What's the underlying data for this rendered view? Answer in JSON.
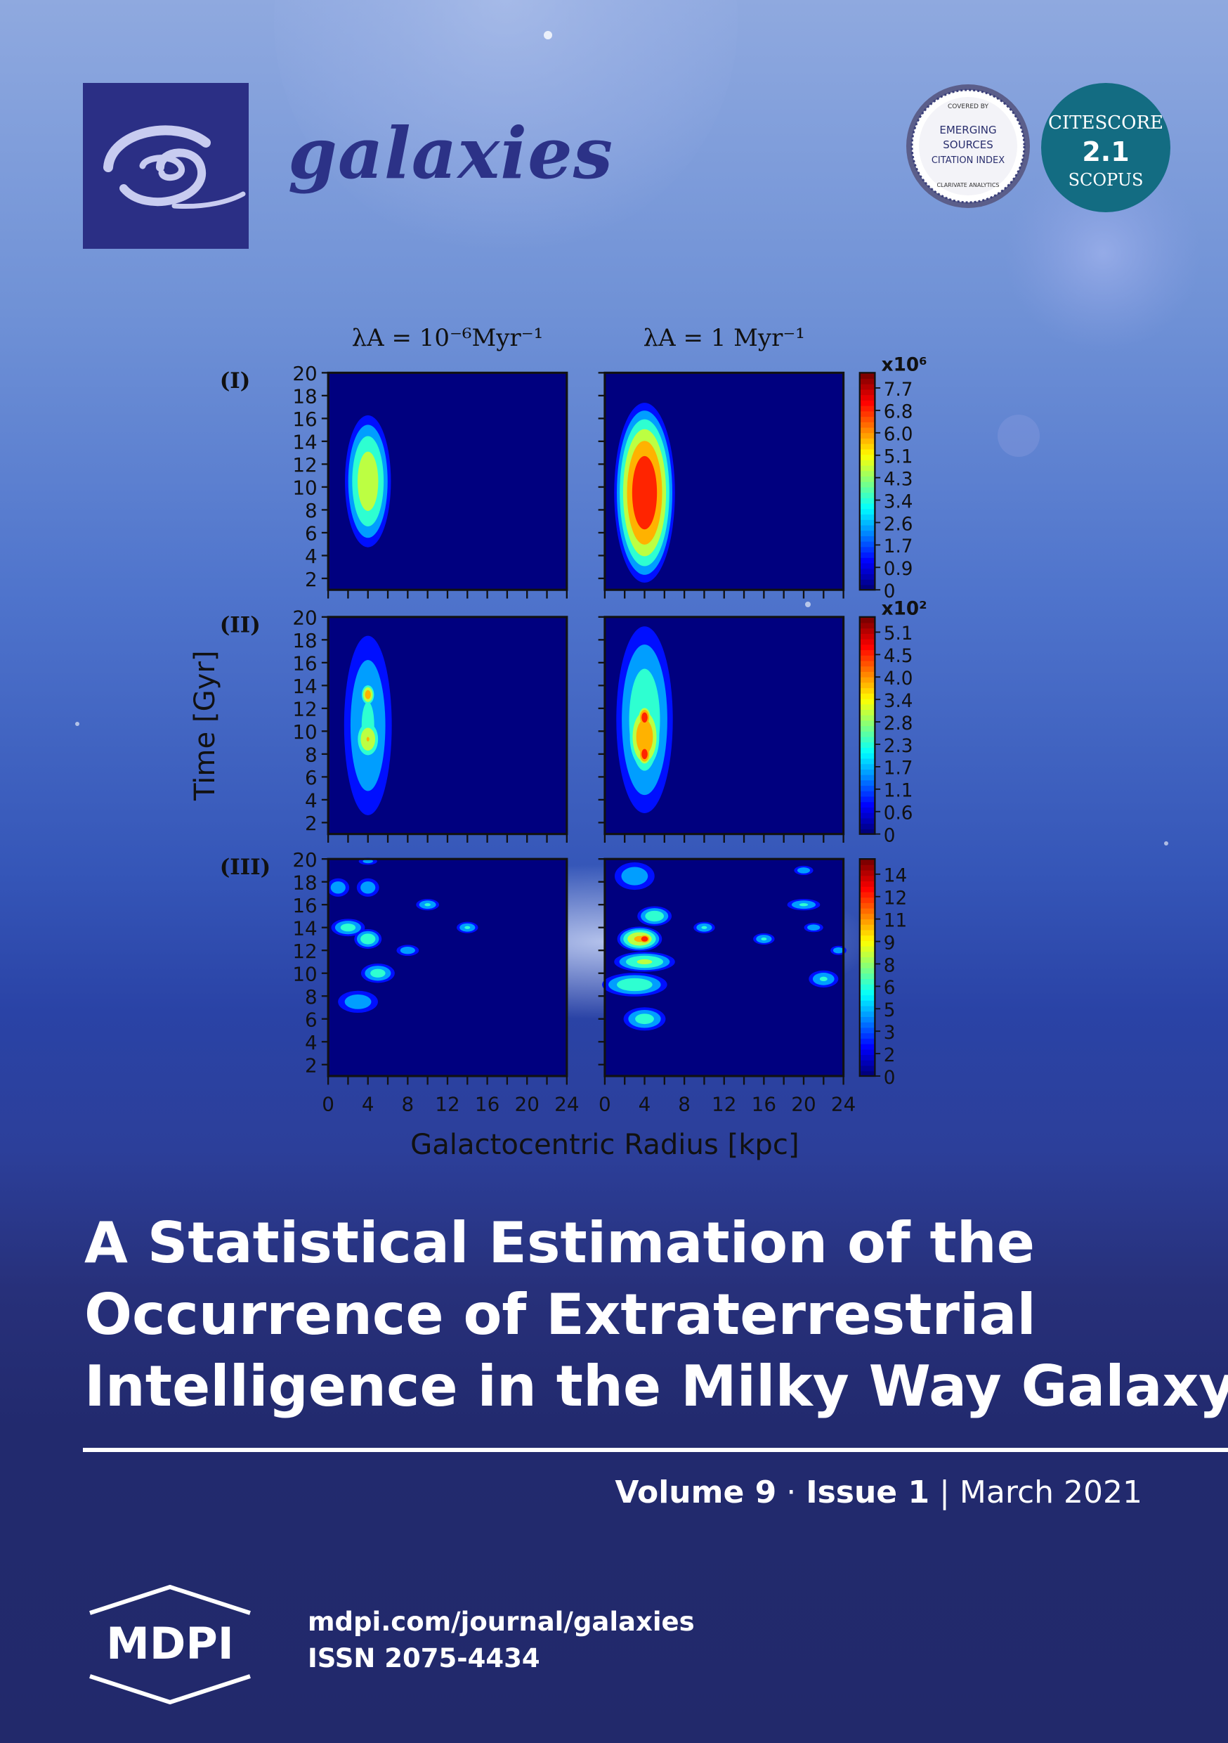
{
  "journal": {
    "name": "galaxies",
    "esci_badge": {
      "top": "COVERED BY",
      "line1": "EMERGING",
      "line2": "SOURCES",
      "line3": "CITATION INDEX",
      "bottom": "CLARIVATE ANALYTICS"
    },
    "citescore": {
      "label": "CITESCORE",
      "value": "2.1",
      "source": "SCOPUS"
    }
  },
  "article": {
    "title_lines": [
      "A Statistical Estimation of the",
      "Occurrence of Extraterrestrial",
      "Intelligence in the Milky Way Galaxy"
    ]
  },
  "issue": {
    "volume": "Volume 9",
    "issue": "Issue 1",
    "date": "March 2021"
  },
  "footer": {
    "publisher_logo": "MDPI",
    "url": "mdpi.com/journal/galaxies",
    "issn": "ISSN 2075-4434"
  },
  "chart_data": {
    "type": "heatmap",
    "column_titles": [
      "λA = 10⁻⁶Myr⁻¹",
      "λA = 1 Myr⁻¹"
    ],
    "row_labels": [
      "(I)",
      "(II)",
      "(III)"
    ],
    "xlabel": "Galactocentric Radius [kpc]",
    "ylabel": "Time [Gyr]",
    "x_ticks": [
      0,
      4,
      8,
      12,
      16,
      20,
      24
    ],
    "y_ticks": [
      2,
      4,
      6,
      8,
      10,
      12,
      14,
      16,
      18,
      20
    ],
    "xlim": [
      0,
      24
    ],
    "ylim": [
      1,
      20
    ],
    "colorbars": [
      {
        "multiplier": "x10⁶",
        "ticks": [
          "7.7",
          "6.8",
          "6.0",
          "5.1",
          "4.3",
          "3.4",
          "2.6",
          "1.7",
          "0.9",
          "0"
        ]
      },
      {
        "multiplier": "x10²",
        "ticks": [
          "5.1",
          "4.5",
          "4.0",
          "3.4",
          "2.8",
          "2.3",
          "1.7",
          "1.1",
          "0.6",
          "0"
        ]
      },
      {
        "multiplier": "",
        "ticks": [
          "14",
          "12",
          "11",
          "9",
          "8",
          "6",
          "5",
          "3",
          "2",
          "0"
        ]
      }
    ],
    "colormap": [
      "#00007f",
      "#0000ff",
      "#007fff",
      "#00ffff",
      "#7fff7f",
      "#ffff00",
      "#ff7f00",
      "#ff0000",
      "#7f0000"
    ],
    "panels": [
      {
        "row": 0,
        "col": 0,
        "blobs": [
          {
            "x": 4,
            "y": 10.5,
            "rx": 2.6,
            "ry": 6.5,
            "peak": 0.68
          }
        ]
      },
      {
        "row": 0,
        "col": 1,
        "blobs": [
          {
            "x": 4,
            "y": 9.5,
            "rx": 3.3,
            "ry": 8.5,
            "peak": 1.0
          }
        ]
      },
      {
        "row": 1,
        "col": 0,
        "blobs": [
          {
            "x": 4,
            "y": 10.5,
            "rx": 2.9,
            "ry": 9.5,
            "peak": 0.45
          },
          {
            "x": 4,
            "y": 9.3,
            "rx": 1.6,
            "ry": 2.2,
            "peak": 0.72
          },
          {
            "x": 4,
            "y": 13.2,
            "rx": 0.9,
            "ry": 1.2,
            "peak": 0.8
          }
        ]
      },
      {
        "row": 1,
        "col": 1,
        "blobs": [
          {
            "x": 4,
            "y": 11,
            "rx": 3.3,
            "ry": 9.5,
            "peak": 0.55
          },
          {
            "x": 4,
            "y": 9.5,
            "rx": 2.1,
            "ry": 3.8,
            "peak": 0.85
          },
          {
            "x": 4,
            "y": 11.2,
            "rx": 0.9,
            "ry": 1.3,
            "peak": 0.97
          },
          {
            "x": 4,
            "y": 8,
            "rx": 0.9,
            "ry": 1.3,
            "peak": 0.97
          }
        ]
      },
      {
        "row": 2,
        "col": 0,
        "blobs": [
          {
            "x": 1,
            "y": 17.5,
            "rx": 1.4,
            "ry": 1.0,
            "peak": 0.4
          },
          {
            "x": 4,
            "y": 17.5,
            "rx": 1.4,
            "ry": 1.0,
            "peak": 0.4
          },
          {
            "x": 2,
            "y": 14,
            "rx": 2.0,
            "ry": 0.9,
            "peak": 0.5
          },
          {
            "x": 4,
            "y": 13,
            "rx": 1.6,
            "ry": 1.0,
            "peak": 0.55
          },
          {
            "x": 10,
            "y": 16,
            "rx": 1.4,
            "ry": 0.6,
            "peak": 0.45
          },
          {
            "x": 14,
            "y": 14,
            "rx": 1.3,
            "ry": 0.6,
            "peak": 0.45
          },
          {
            "x": 8,
            "y": 12,
            "rx": 1.4,
            "ry": 0.6,
            "peak": 0.4
          },
          {
            "x": 5,
            "y": 10,
            "rx": 2.0,
            "ry": 1.0,
            "peak": 0.5
          },
          {
            "x": 3,
            "y": 7.5,
            "rx": 2.5,
            "ry": 1.2,
            "peak": 0.4
          },
          {
            "x": 4,
            "y": 19.8,
            "rx": 1.2,
            "ry": 0.4,
            "peak": 0.35
          }
        ]
      },
      {
        "row": 2,
        "col": 1,
        "blobs": [
          {
            "x": 3,
            "y": 18.5,
            "rx": 2.5,
            "ry": 1.5,
            "peak": 0.4
          },
          {
            "x": 5,
            "y": 15,
            "rx": 2.0,
            "ry": 1.0,
            "peak": 0.55
          },
          {
            "x": 3.5,
            "y": 13,
            "rx": 2.5,
            "ry": 1.2,
            "peak": 0.75
          },
          {
            "x": 4,
            "y": 13,
            "rx": 0.9,
            "ry": 0.6,
            "peak": 1.0
          },
          {
            "x": 4,
            "y": 11,
            "rx": 3.5,
            "ry": 1.0,
            "peak": 0.6
          },
          {
            "x": 3,
            "y": 9,
            "rx": 3.8,
            "ry": 1.2,
            "peak": 0.55
          },
          {
            "x": 4,
            "y": 6,
            "rx": 2.5,
            "ry": 1.2,
            "peak": 0.5
          },
          {
            "x": 10,
            "y": 14,
            "rx": 1.3,
            "ry": 0.6,
            "peak": 0.45
          },
          {
            "x": 16,
            "y": 13,
            "rx": 1.3,
            "ry": 0.6,
            "peak": 0.45
          },
          {
            "x": 20,
            "y": 19,
            "rx": 1.2,
            "ry": 0.5,
            "peak": 0.4
          },
          {
            "x": 20,
            "y": 16,
            "rx": 2.0,
            "ry": 0.6,
            "peak": 0.45
          },
          {
            "x": 21,
            "y": 14,
            "rx": 1.2,
            "ry": 0.5,
            "peak": 0.4
          },
          {
            "x": 22,
            "y": 9.5,
            "rx": 1.8,
            "ry": 0.9,
            "peak": 0.45
          },
          {
            "x": 23.5,
            "y": 12,
            "rx": 1.0,
            "ry": 0.5,
            "peak": 0.4
          }
        ]
      }
    ]
  }
}
